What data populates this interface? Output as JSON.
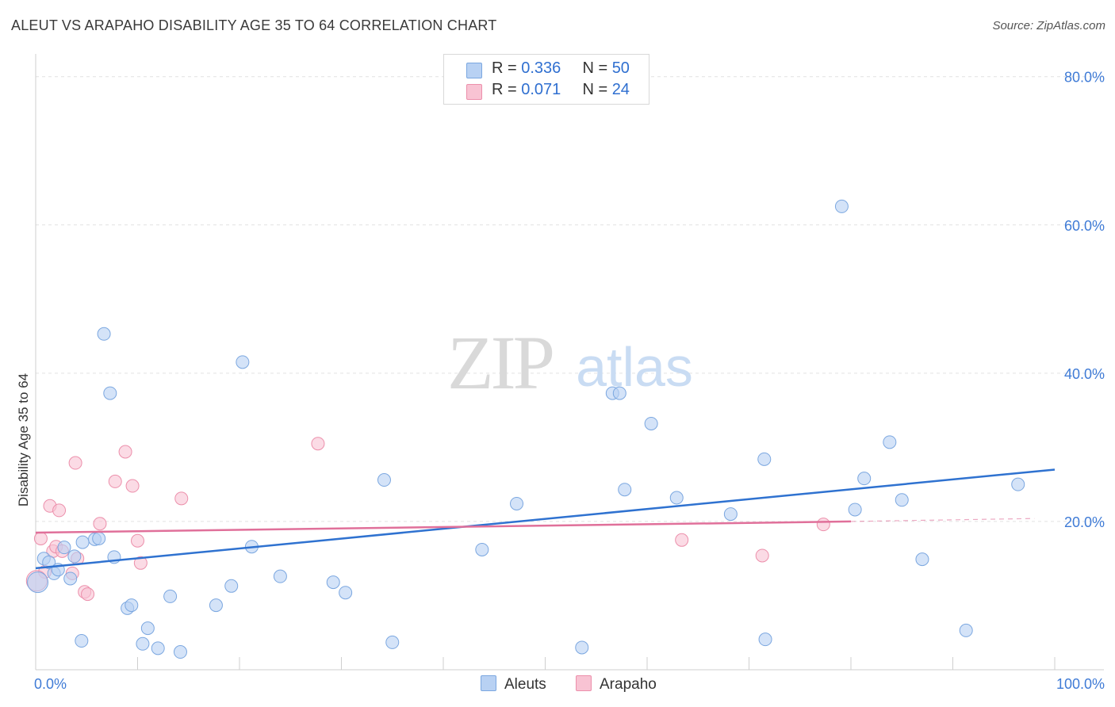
{
  "title": "ALEUT VS ARAPAHO DISABILITY AGE 35 TO 64 CORRELATION CHART",
  "source": "Source: ZipAtlas.com",
  "watermark": {
    "zip": "ZIP",
    "atlas": "atlas"
  },
  "legend_top": [
    {
      "r_label": "R = ",
      "r_value": "0.336",
      "n_label": "N = ",
      "n_value": "50"
    },
    {
      "r_label": "R = ",
      "r_value": "0.071",
      "n_label": "N = ",
      "n_value": "24"
    }
  ],
  "legend_bottom": {
    "aleuts": "Aleuts",
    "arapaho": "Arapaho"
  },
  "colors": {
    "aleuts_fill": "#b8d1f3",
    "aleuts_stroke": "#7ba7e0",
    "aleuts_line": "#2f72d0",
    "arapaho_fill": "#f8c3d3",
    "arapaho_stroke": "#ec8fab",
    "arapaho_line": "#e0709a",
    "axis_label": "#3f7bd6",
    "grid": "#e2e2e2"
  },
  "chart_data": {
    "type": "scatter",
    "title": "ALEUT VS ARAPAHO DISABILITY AGE 35 TO 64 CORRELATION CHART",
    "xlabel": "",
    "ylabel": "Disability Age 35 to 64",
    "xlim": [
      0,
      100
    ],
    "ylim": [
      0,
      82
    ],
    "x_tick_labels": [
      "0.0%",
      "100.0%"
    ],
    "y_ticks": [
      20,
      40,
      60,
      80
    ],
    "y_tick_labels": [
      "20.0%",
      "40.0%",
      "60.0%",
      "80.0%"
    ],
    "grid": true,
    "series": [
      {
        "name": "Aleuts",
        "points": [
          [
            0.2,
            11.8
          ],
          [
            0.8,
            15.0
          ],
          [
            1.3,
            14.5
          ],
          [
            1.8,
            13.0
          ],
          [
            2.2,
            13.5
          ],
          [
            2.8,
            16.5
          ],
          [
            3.4,
            12.3
          ],
          [
            3.8,
            15.3
          ],
          [
            4.5,
            3.9
          ],
          [
            4.6,
            17.2
          ],
          [
            5.8,
            17.6
          ],
          [
            6.2,
            17.7
          ],
          [
            6.7,
            45.3
          ],
          [
            7.3,
            37.3
          ],
          [
            7.7,
            15.2
          ],
          [
            9.0,
            8.3
          ],
          [
            9.4,
            8.7
          ],
          [
            10.5,
            3.5
          ],
          [
            11.0,
            5.6
          ],
          [
            12.0,
            2.9
          ],
          [
            13.2,
            9.9
          ],
          [
            14.2,
            2.4
          ],
          [
            17.7,
            8.7
          ],
          [
            19.2,
            11.3
          ],
          [
            20.3,
            41.5
          ],
          [
            21.2,
            16.6
          ],
          [
            24.0,
            12.6
          ],
          [
            29.2,
            11.8
          ],
          [
            30.4,
            10.4
          ],
          [
            34.2,
            25.6
          ],
          [
            35.0,
            3.7
          ],
          [
            43.8,
            16.2
          ],
          [
            47.2,
            22.4
          ],
          [
            53.6,
            3.0
          ],
          [
            56.6,
            37.3
          ],
          [
            57.3,
            37.3
          ],
          [
            57.8,
            24.3
          ],
          [
            60.4,
            33.2
          ],
          [
            62.9,
            23.2
          ],
          [
            68.2,
            21.0
          ],
          [
            71.5,
            28.4
          ],
          [
            71.6,
            4.1
          ],
          [
            79.1,
            62.5
          ],
          [
            80.4,
            21.6
          ],
          [
            81.3,
            25.8
          ],
          [
            83.8,
            30.7
          ],
          [
            85.0,
            22.9
          ],
          [
            87.0,
            14.9
          ],
          [
            91.3,
            5.3
          ],
          [
            96.4,
            25.0
          ]
        ],
        "trend": [
          [
            0,
            13.7
          ],
          [
            100,
            27.0
          ]
        ]
      },
      {
        "name": "Arapaho",
        "points": [
          [
            0.5,
            17.7
          ],
          [
            0.9,
            13.2
          ],
          [
            1.4,
            22.1
          ],
          [
            1.7,
            16.0
          ],
          [
            2.0,
            16.6
          ],
          [
            2.3,
            21.5
          ],
          [
            2.6,
            16.0
          ],
          [
            3.6,
            13.0
          ],
          [
            3.9,
            27.9
          ],
          [
            4.1,
            15.0
          ],
          [
            4.8,
            10.5
          ],
          [
            5.1,
            10.2
          ],
          [
            6.3,
            19.7
          ],
          [
            7.8,
            25.4
          ],
          [
            8.8,
            29.4
          ],
          [
            9.5,
            24.8
          ],
          [
            10.0,
            17.4
          ],
          [
            10.3,
            14.4
          ],
          [
            14.3,
            23.1
          ],
          [
            27.7,
            30.5
          ],
          [
            63.4,
            17.5
          ],
          [
            71.3,
            15.4
          ],
          [
            77.3,
            19.6
          ],
          [
            0.1,
            12.0
          ]
        ],
        "trend": [
          [
            0,
            18.5
          ],
          [
            80,
            20.0
          ]
        ],
        "trend_extension": [
          [
            80,
            20.0
          ],
          [
            98,
            20.4
          ]
        ]
      }
    ]
  }
}
